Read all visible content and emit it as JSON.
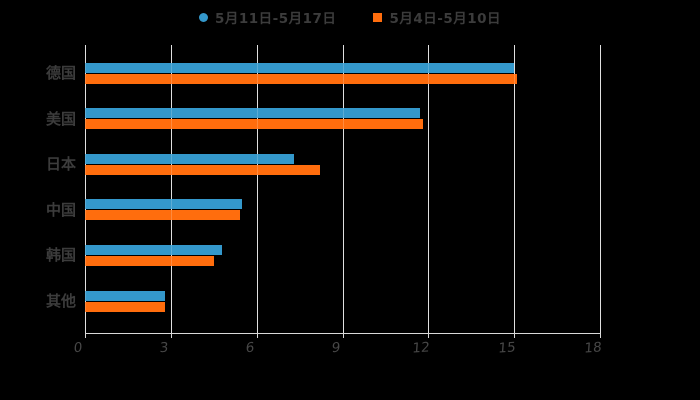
{
  "page": {
    "background": "#000000"
  },
  "chart_data": {
    "type": "bar",
    "orientation": "horizontal",
    "title": "",
    "categories": [
      "德国",
      "美国",
      "日本",
      "中国",
      "韩国",
      "其他"
    ],
    "category_ids": [
      "germany",
      "usa",
      "japan",
      "china",
      "korea",
      "other"
    ],
    "series": [
      {
        "id": "week-may11-17",
        "name": "5月11日-5月17日",
        "color": "#3498CB",
        "marker": "circle",
        "values": [
          15.0,
          11.7,
          7.3,
          5.5,
          4.8,
          2.8
        ]
      },
      {
        "id": "week-may4-10",
        "name": "5月4日-5月10日",
        "color": "#FF6D0D",
        "marker": "square",
        "values": [
          15.1,
          11.8,
          8.2,
          5.4,
          4.5,
          2.8
        ]
      }
    ],
    "xlim": [
      0,
      18
    ],
    "xticks": [
      0,
      3,
      6,
      9,
      12,
      15,
      18
    ],
    "xlabel": "",
    "ylabel": "",
    "grid": true,
    "legend_position": "top-center",
    "styles": {
      "grid_color": "#D9D9D9",
      "axis_color": "#D9D9D9",
      "text_color": "#3C3C3C",
      "background": "#000000"
    }
  }
}
